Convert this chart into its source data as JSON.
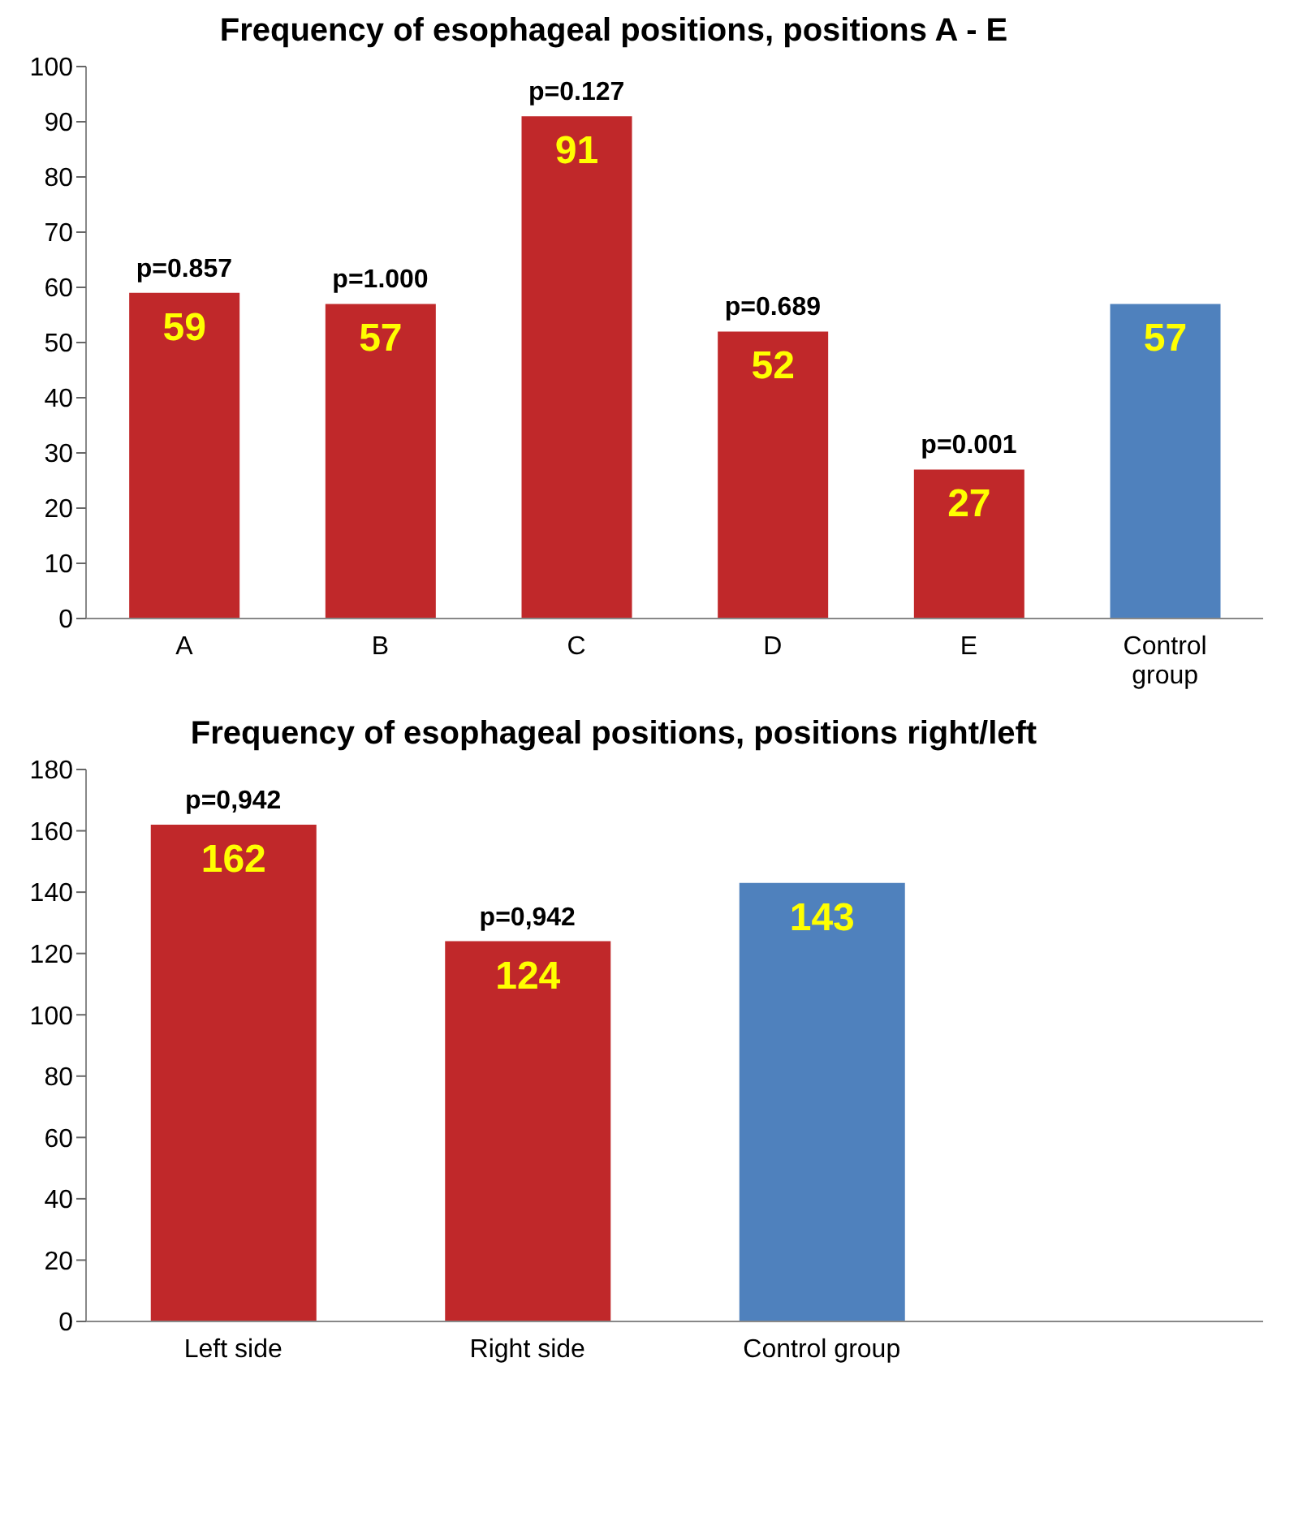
{
  "chart_data": [
    {
      "type": "bar",
      "title": "Frequency of esophageal positions, positions A - E",
      "categories": [
        "A",
        "B",
        "C",
        "D",
        "E",
        "Control group"
      ],
      "values": [
        59,
        57,
        91,
        52,
        27,
        57
      ],
      "colors": [
        "#c0282a",
        "#c0282a",
        "#c0282a",
        "#c0282a",
        "#c0282a",
        "#4f81bd"
      ],
      "ylim": [
        0,
        100
      ],
      "yticks": [
        0,
        10,
        20,
        30,
        40,
        50,
        60,
        70,
        80,
        90,
        100
      ],
      "grid": false,
      "data_labels": true,
      "legend": false,
      "annotations": [
        {
          "text": "p=0.857",
          "x": "A",
          "y": 59
        },
        {
          "text": "p=1.000",
          "x": "B",
          "y": 57
        },
        {
          "text": "p=0.127",
          "x": "C",
          "y": 91
        },
        {
          "text": "p=0.689",
          "x": "D",
          "y": 52
        },
        {
          "text": "p=0.001",
          "x": "E",
          "y": 27
        }
      ]
    },
    {
      "type": "bar",
      "title": "Frequency of esophageal positions, positions right/left",
      "categories": [
        "Left side",
        "Right side",
        "Control group",
        null
      ],
      "values": [
        162,
        124,
        143,
        null
      ],
      "colors": [
        "#c0282a",
        "#c0282a",
        "#4f81bd",
        "#c0282a"
      ],
      "ylim": [
        0,
        180
      ],
      "yticks": [
        0,
        20,
        40,
        60,
        80,
        100,
        120,
        140,
        160,
        180
      ],
      "grid": false,
      "data_labels": true,
      "legend": false,
      "annotations": [
        {
          "text": "p=0,942",
          "x": "Left side",
          "y": 162
        },
        {
          "text": "p=0,942",
          "x": "Right side",
          "y": 124
        }
      ]
    }
  ]
}
